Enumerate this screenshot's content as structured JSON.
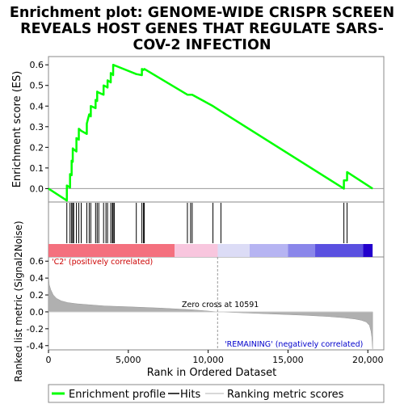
{
  "chart_data": {
    "type": "line",
    "title_lines": [
      "Enrichment plot: GENOME-WIDE CRISPR SCREEN",
      "REVEALS HOST GENES THAT REGULATE SARS-",
      "COV-2 INFECTION"
    ],
    "es_panel": {
      "ylabel": "Enrichment score (ES)",
      "ylim": [
        -0.065,
        0.64
      ],
      "yticks": [
        0.0,
        0.1,
        0.2,
        0.3,
        0.4,
        0.5,
        0.6
      ],
      "ytick_labels": [
        "0.0",
        "0.1",
        "0.2",
        "0.3",
        "0.4",
        "0.5",
        "0.6"
      ],
      "line_color": "#00ff00"
    },
    "metric_panel": {
      "ylabel": "Ranked list metric (Signal2Noise)",
      "ylim": [
        -0.45,
        0.65
      ],
      "yticks": [
        -0.4,
        -0.2,
        0.0,
        0.2,
        0.4,
        0.6
      ],
      "ytick_labels": [
        "-0.4",
        "-0.2",
        "0.0",
        "0.2",
        "0.4",
        "0.6"
      ],
      "xlabel": "Rank in Ordered Dataset",
      "fill_color": "#b0b0b0"
    },
    "xlim": [
      0,
      21000
    ],
    "xticks": [
      0,
      5000,
      10000,
      15000,
      20000
    ],
    "xtick_labels": [
      "0",
      "5,000",
      "10,000",
      "15,000",
      "20,000"
    ],
    "n_genes": 20300,
    "zero_cross": 10591,
    "annotations": {
      "zero_cross_label": "Zero cross at 10591",
      "positive_label": "'C2' (positively correlated)",
      "negative_label": "'REMAINING' (negatively correlated)",
      "positive_color": "#cc0000",
      "negative_color": "#0000cc"
    },
    "hits": [
      1150,
      1350,
      1450,
      1520,
      1580,
      1750,
      1900,
      2050,
      2400,
      2550,
      2650,
      2950,
      3050,
      3150,
      3450,
      3600,
      3700,
      3900,
      4000,
      4050,
      4120,
      5500,
      5850,
      5950,
      6000,
      8700,
      8900,
      9000,
      10300,
      10800,
      18500,
      18700
    ],
    "es_curve": {
      "x": [
        0,
        1150,
        1151,
        1350,
        1351,
        1450,
        1451,
        1520,
        1521,
        1580,
        1581,
        1750,
        1751,
        1900,
        1901,
        2050,
        2051,
        2400,
        2401,
        2550,
        2551,
        2650,
        2651,
        2950,
        2951,
        3050,
        3051,
        3150,
        3151,
        3450,
        3451,
        3600,
        3601,
        3700,
        3701,
        3900,
        3901,
        4000,
        4001,
        4050,
        4051,
        4120,
        4121,
        5500,
        5501,
        5850,
        5851,
        5950,
        5951,
        6000,
        6001,
        8700,
        8701,
        8900,
        8901,
        9000,
        9001,
        10300,
        10301,
        10800,
        10801,
        18500,
        18501,
        18700,
        18701,
        20300
      ],
      "y": [
        0.0,
        -0.058,
        0.015,
        0.005,
        0.07,
        0.065,
        0.135,
        0.13,
        0.195,
        0.19,
        0.19,
        0.18,
        0.245,
        0.237,
        0.29,
        0.28,
        0.28,
        0.265,
        0.315,
        0.36,
        0.36,
        0.35,
        0.4,
        0.39,
        0.43,
        0.425,
        0.47,
        0.465,
        0.465,
        0.455,
        0.5,
        0.495,
        0.495,
        0.49,
        0.525,
        0.515,
        0.56,
        0.555,
        0.555,
        0.55,
        0.6,
        0.598,
        0.598,
        0.555,
        0.555,
        0.55,
        0.58,
        0.575,
        0.575,
        0.58,
        0.58,
        0.455,
        0.455,
        0.455,
        0.455,
        0.455,
        0.455,
        0.4,
        0.4,
        0.375,
        0.375,
        0.0,
        0.04,
        0.04,
        0.08,
        0.0
      ]
    },
    "metric_curve": {
      "x": [
        0,
        50,
        150,
        300,
        500,
        800,
        1200,
        1800,
        2500,
        3500,
        5000,
        7000,
        9000,
        10591,
        12000,
        14000,
        16000,
        17500,
        18500,
        19200,
        19600,
        19900,
        20100,
        20200,
        20250,
        20300
      ],
      "y": [
        0.43,
        0.32,
        0.26,
        0.2,
        0.16,
        0.13,
        0.11,
        0.095,
        0.085,
        0.07,
        0.06,
        0.045,
        0.025,
        0.0,
        -0.01,
        -0.025,
        -0.04,
        -0.055,
        -0.07,
        -0.085,
        -0.1,
        -0.12,
        -0.16,
        -0.23,
        -0.3,
        -0.44
      ]
    },
    "heat_segments": [
      {
        "to": 7900,
        "color": "#f4707e"
      },
      {
        "to": 10600,
        "color": "#f8c6de"
      },
      {
        "to": 12600,
        "color": "#dcdcf6"
      },
      {
        "to": 15000,
        "color": "#b6b4f2"
      },
      {
        "to": 16700,
        "color": "#8a86ea"
      },
      {
        "to": 19700,
        "color": "#5a50e0"
      },
      {
        "to": 20300,
        "color": "#2200cc"
      }
    ],
    "legend": [
      {
        "label": "Enrichment profile",
        "color": "#00ff00",
        "icon": "thick-line"
      },
      {
        "label": "Hits",
        "color": "#000000",
        "icon": "thin-line"
      },
      {
        "label": "Ranking metric scores",
        "color": "#cccccc",
        "icon": "thin-line"
      }
    ]
  }
}
